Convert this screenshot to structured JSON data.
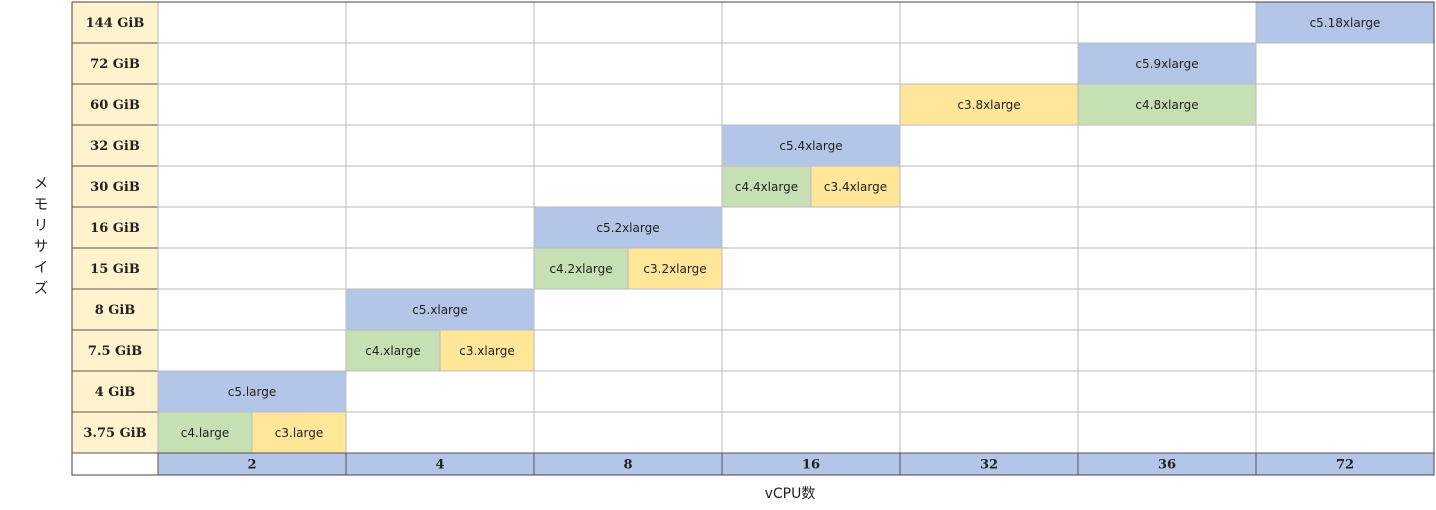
{
  "table": {
    "y_label": "メモリサイズ",
    "x_label": "vCPU数",
    "columns": [
      "2",
      "4",
      "8",
      "16",
      "32",
      "36",
      "72"
    ],
    "colors": {
      "c5": "#b4c6e7",
      "c4": "#c6e0b4",
      "c3": "#ffe699"
    },
    "rows": [
      {
        "label": "144 GiB",
        "cells": [
          null,
          null,
          null,
          null,
          null,
          null,
          [
            "c5.18xlarge"
          ]
        ]
      },
      {
        "label": "72 GiB",
        "cells": [
          null,
          null,
          null,
          null,
          null,
          [
            "c5.9xlarge"
          ],
          null
        ]
      },
      {
        "label": "60 GiB",
        "cells": [
          null,
          null,
          null,
          null,
          [
            "c3.8xlarge"
          ],
          [
            "c4.8xlarge"
          ],
          null
        ]
      },
      {
        "label": "32 GiB",
        "cells": [
          null,
          null,
          null,
          [
            "c5.4xlarge"
          ],
          null,
          null,
          null
        ]
      },
      {
        "label": "30 GiB",
        "cells": [
          null,
          null,
          null,
          [
            "c4.4xlarge",
            "c3.4xlarge"
          ],
          null,
          null,
          null
        ]
      },
      {
        "label": "16 GiB",
        "cells": [
          null,
          null,
          [
            "c5.2xlarge"
          ],
          null,
          null,
          null,
          null
        ]
      },
      {
        "label": "15 GiB",
        "cells": [
          null,
          null,
          [
            "c4.2xlarge",
            "c3.2xlarge"
          ],
          null,
          null,
          null,
          null
        ]
      },
      {
        "label": "8 GiB",
        "cells": [
          null,
          [
            "c5.xlarge"
          ],
          null,
          null,
          null,
          null,
          null
        ]
      },
      {
        "label": "7.5 GiB",
        "cells": [
          null,
          [
            "c4.xlarge",
            "c3.xlarge"
          ],
          null,
          null,
          null,
          null,
          null
        ]
      },
      {
        "label": "4 GiB",
        "cells": [
          [
            "c5.large"
          ],
          null,
          null,
          null,
          null,
          null,
          null
        ]
      },
      {
        "label": "3.75 GiB",
        "cells": [
          [
            "c4.large",
            "c3.large"
          ],
          null,
          null,
          null,
          null,
          null,
          null
        ]
      }
    ]
  }
}
